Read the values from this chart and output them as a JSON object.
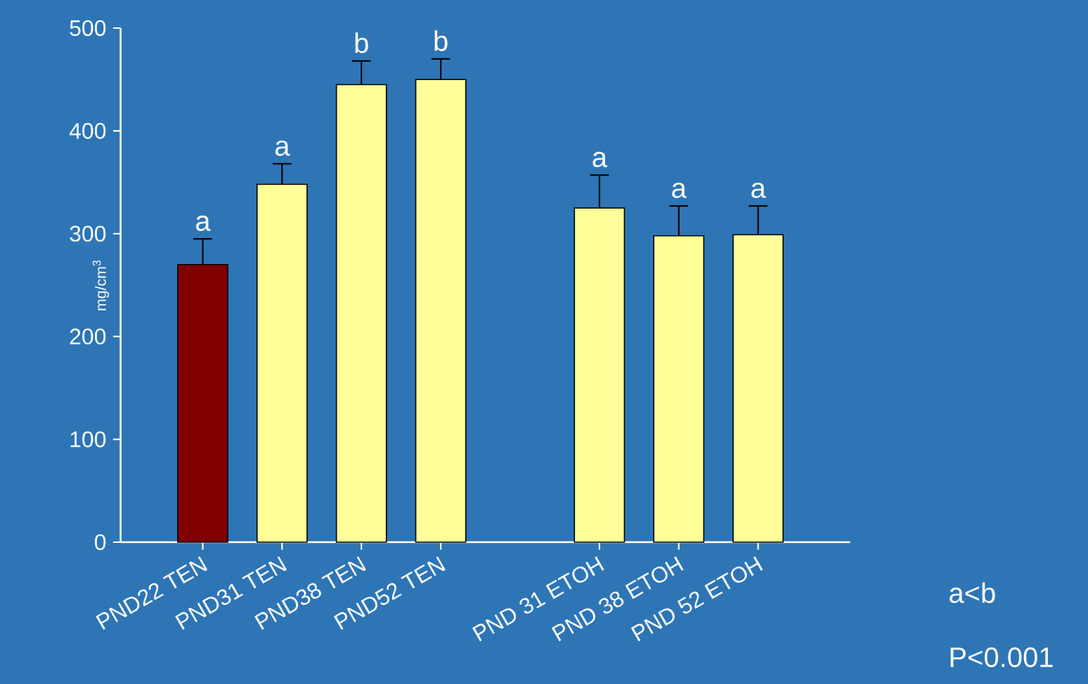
{
  "chart_data": {
    "type": "bar",
    "ylabel": "mg/cm$^{3}$",
    "categories": [
      "PND22 TEN",
      "PND31 TEN",
      "PND38 TEN",
      "PND52 TEN",
      null,
      "PND 31 ETOH",
      "PND 38 ETOH",
      "PND 52 ETOH"
    ],
    "values": [
      270,
      348,
      445,
      450,
      null,
      325,
      298,
      299
    ],
    "colors": [
      "#800000",
      "#ffff99",
      "#ffff99",
      "#ffff99",
      "#ffff99",
      "#ffff99",
      "#ffff99",
      "#ffff99"
    ],
    "errors": [
      [
        270,
        295
      ],
      [
        348,
        368
      ],
      [
        445,
        468
      ],
      [
        450,
        470
      ],
      null,
      [
        325,
        357
      ],
      [
        298,
        327
      ],
      [
        299,
        327
      ]
    ],
    "value_labels": [
      "a",
      "a",
      "b",
      "b",
      null,
      "a",
      "a",
      "a"
    ],
    "ylim": [
      0,
      500
    ],
    "yticks": [
      0,
      100,
      200,
      300,
      400,
      500
    ],
    "grid": false,
    "annotations": [
      "a<b",
      "P<0.001"
    ]
  }
}
